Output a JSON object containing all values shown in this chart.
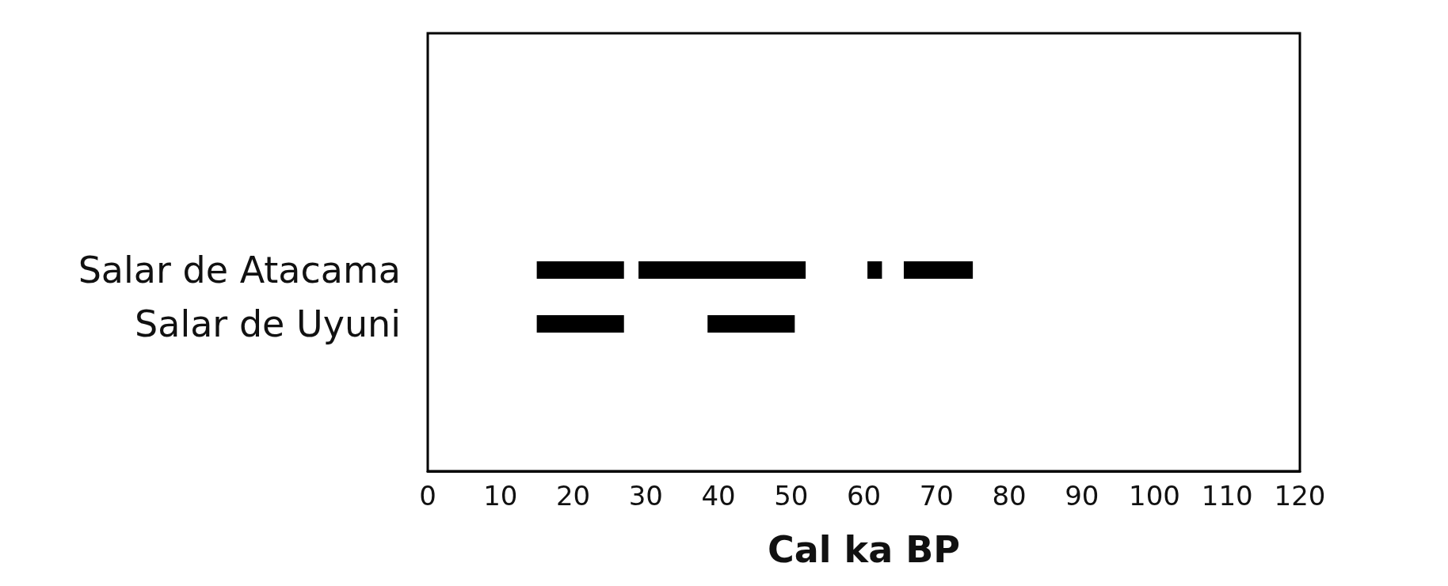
{
  "chart_data": {
    "type": "bar",
    "orientation": "horizontal",
    "xlabel": "Cal ka BP",
    "categories": [
      "Salar de Atacama",
      "Salar de Uyuni"
    ],
    "series": [
      {
        "color": "#000000",
        "base": [
          15,
          15
        ],
        "values": [
          12,
          12
        ]
      },
      {
        "color": "#000000",
        "base": [
          29,
          38.5
        ],
        "values": [
          23,
          12
        ]
      },
      {
        "color": "#000000",
        "base": [
          60.5,
          null
        ],
        "values": [
          2,
          null
        ]
      },
      {
        "color": "#000000",
        "base": [
          65.5,
          null
        ],
        "values": [
          9.5,
          null
        ]
      }
    ],
    "xlim": [
      0,
      120
    ],
    "xticks": [
      0,
      10,
      20,
      30,
      40,
      50,
      60,
      70,
      80,
      90,
      100,
      110,
      120
    ],
    "grid": false
  }
}
